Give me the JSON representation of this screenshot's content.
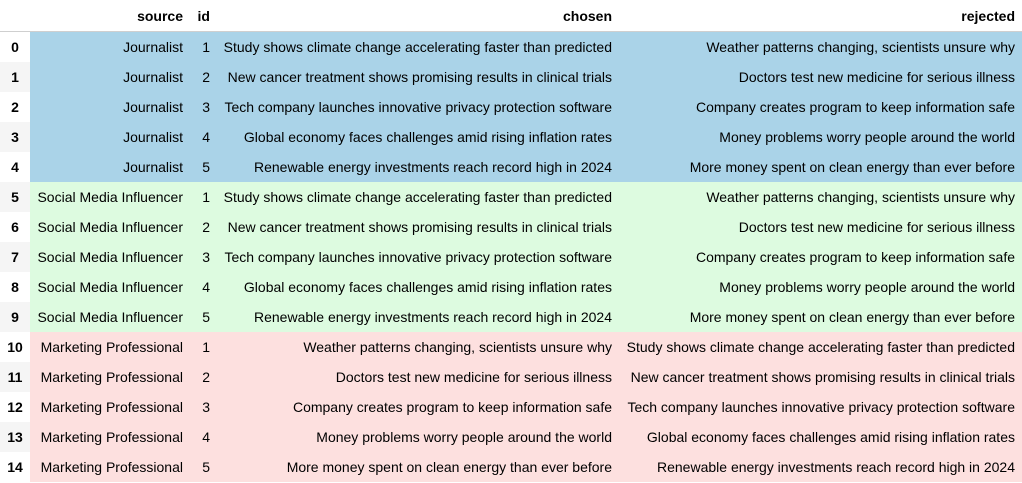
{
  "table": {
    "columns": [
      "",
      "source",
      "id",
      "chosen",
      "rejected"
    ],
    "group_colors": {
      "Journalist": "#aad3e8",
      "Social Media Influencer": "#ddfbe0",
      "Marketing Professional": "#fde0df"
    },
    "rows": [
      {
        "index": "0",
        "source": "Journalist",
        "id": "1",
        "chosen": "Study shows climate change accelerating faster than predicted",
        "rejected": "Weather patterns changing, scientists unsure why"
      },
      {
        "index": "1",
        "source": "Journalist",
        "id": "2",
        "chosen": "New cancer treatment shows promising results in clinical trials",
        "rejected": "Doctors test new medicine for serious illness"
      },
      {
        "index": "2",
        "source": "Journalist",
        "id": "3",
        "chosen": "Tech company launches innovative privacy protection software",
        "rejected": "Company creates program to keep information safe"
      },
      {
        "index": "3",
        "source": "Journalist",
        "id": "4",
        "chosen": "Global economy faces challenges amid rising inflation rates",
        "rejected": "Money problems worry people around the world"
      },
      {
        "index": "4",
        "source": "Journalist",
        "id": "5",
        "chosen": "Renewable energy investments reach record high in 2024",
        "rejected": "More money spent on clean energy than ever before"
      },
      {
        "index": "5",
        "source": "Social Media Influencer",
        "id": "1",
        "chosen": "Study shows climate change accelerating faster than predicted",
        "rejected": "Weather patterns changing, scientists unsure why"
      },
      {
        "index": "6",
        "source": "Social Media Influencer",
        "id": "2",
        "chosen": "New cancer treatment shows promising results in clinical trials",
        "rejected": "Doctors test new medicine for serious illness"
      },
      {
        "index": "7",
        "source": "Social Media Influencer",
        "id": "3",
        "chosen": "Tech company launches innovative privacy protection software",
        "rejected": "Company creates program to keep information safe"
      },
      {
        "index": "8",
        "source": "Social Media Influencer",
        "id": "4",
        "chosen": "Global economy faces challenges amid rising inflation rates",
        "rejected": "Money problems worry people around the world"
      },
      {
        "index": "9",
        "source": "Social Media Influencer",
        "id": "5",
        "chosen": "Renewable energy investments reach record high in 2024",
        "rejected": "More money spent on clean energy than ever before"
      },
      {
        "index": "10",
        "source": "Marketing Professional",
        "id": "1",
        "chosen": "Weather patterns changing, scientists unsure why",
        "rejected": "Study shows climate change accelerating faster than predicted"
      },
      {
        "index": "11",
        "source": "Marketing Professional",
        "id": "2",
        "chosen": "Doctors test new medicine for serious illness",
        "rejected": "New cancer treatment shows promising results in clinical trials"
      },
      {
        "index": "12",
        "source": "Marketing Professional",
        "id": "3",
        "chosen": "Company creates program to keep information safe",
        "rejected": "Tech company launches innovative privacy protection software"
      },
      {
        "index": "13",
        "source": "Marketing Professional",
        "id": "4",
        "chosen": "Money problems worry people around the world",
        "rejected": "Global economy faces challenges amid rising inflation rates"
      },
      {
        "index": "14",
        "source": "Marketing Professional",
        "id": "5",
        "chosen": "More money spent on clean energy than ever before",
        "rejected": "Renewable energy investments reach record high in 2024"
      }
    ]
  }
}
